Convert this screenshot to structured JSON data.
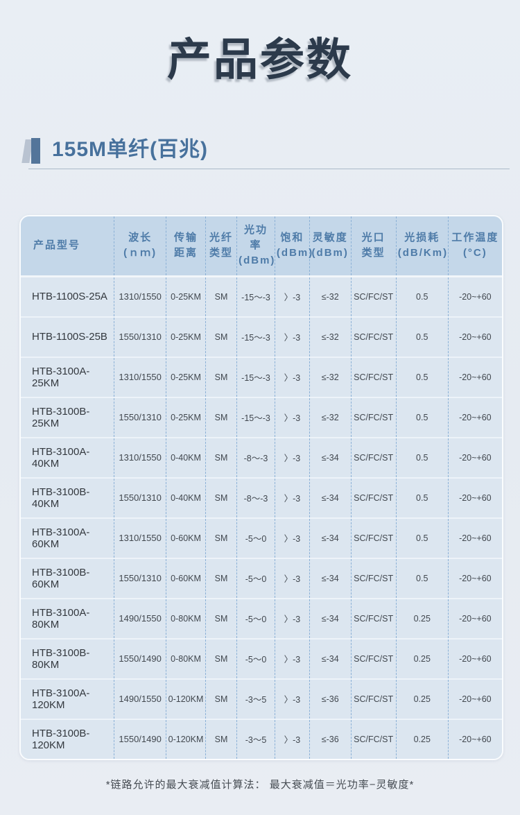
{
  "page": {
    "title": "产品参数",
    "section_title": "155M单纤(百兆)",
    "footnote": "*链路允许的最大衰减值计算法： 最大衰减值＝光功率−灵敏度*"
  },
  "table": {
    "headers": [
      {
        "line1": "产品型号",
        "line2": ""
      },
      {
        "line1": "波长",
        "line2": "(ｎｍ)"
      },
      {
        "line1": "传输",
        "line2": "距离"
      },
      {
        "line1": "光纤",
        "line2": "类型"
      },
      {
        "line1": "光功率",
        "line2": "(dBm)"
      },
      {
        "line1": "饱和",
        "line2": "(dBm)"
      },
      {
        "line1": "灵敏度",
        "line2": "(dBm)"
      },
      {
        "line1": "光口",
        "line2": "类型"
      },
      {
        "line1": "光损耗",
        "line2": "(dB/Km)"
      },
      {
        "line1": "工作温度",
        "line2": "(°C)"
      }
    ],
    "rows": [
      [
        "HTB-1100S-25A",
        "1310/1550",
        "0-25KM",
        "SM",
        "-15～-3",
        "〉-3",
        "≤-32",
        "SC/FC/ST",
        "0.5",
        "-20~+60"
      ],
      [
        "HTB-1100S-25B",
        "1550/1310",
        "0-25KM",
        "SM",
        "-15～-3",
        "〉-3",
        "≤-32",
        "SC/FC/ST",
        "0.5",
        "-20~+60"
      ],
      [
        "HTB-3100A-25KM",
        "1310/1550",
        "0-25KM",
        "SM",
        "-15～-3",
        "〉-3",
        "≤-32",
        "SC/FC/ST",
        "0.5",
        "-20~+60"
      ],
      [
        "HTB-3100B-25KM",
        "1550/1310",
        "0-25KM",
        "SM",
        "-15～-3",
        "〉-3",
        "≤-32",
        "SC/FC/ST",
        "0.5",
        "-20~+60"
      ],
      [
        "HTB-3100A-40KM",
        "1310/1550",
        "0-40KM",
        "SM",
        "-8～-3",
        "〉-3",
        "≤-34",
        "SC/FC/ST",
        "0.5",
        "-20~+60"
      ],
      [
        "HTB-3100B-40KM",
        "1550/1310",
        "0-40KM",
        "SM",
        "-8～-3",
        "〉-3",
        "≤-34",
        "SC/FC/ST",
        "0.5",
        "-20~+60"
      ],
      [
        "HTB-3100A-60KM",
        "1310/1550",
        "0-60KM",
        "SM",
        "-5～0",
        "〉-3",
        "≤-34",
        "SC/FC/ST",
        "0.5",
        "-20~+60"
      ],
      [
        "HTB-3100B-60KM",
        "1550/1310",
        "0-60KM",
        "SM",
        "-5～0",
        "〉-3",
        "≤-34",
        "SC/FC/ST",
        "0.5",
        "-20~+60"
      ],
      [
        "HTB-3100A-80KM",
        "1490/1550",
        "0-80KM",
        "SM",
        "-5～0",
        "〉-3",
        "≤-34",
        "SC/FC/ST",
        "0.25",
        "-20~+60"
      ],
      [
        "HTB-3100B-80KM",
        "1550/1490",
        "0-80KM",
        "SM",
        "-5～0",
        "〉-3",
        "≤-34",
        "SC/FC/ST",
        "0.25",
        "-20~+60"
      ],
      [
        "HTB-3100A-120KM",
        "1490/1550",
        "0-120KM",
        "SM",
        "-3～5",
        "〉-3",
        "≤-36",
        "SC/FC/ST",
        "0.25",
        "-20~+60"
      ],
      [
        "HTB-3100B-120KM",
        "1550/1490",
        "0-120KM",
        "SM",
        "-3～5",
        "〉-3",
        "≤-36",
        "SC/FC/ST",
        "0.25",
        "-20~+60"
      ]
    ],
    "col_widths_pct": [
      19.4,
      10.8,
      8.2,
      6.5,
      7.9,
      7.2,
      8.6,
      9.4,
      10.8,
      11.2
    ]
  },
  "colors": {
    "page_bg": "#e9edf3",
    "title_text": "#2c3a4b",
    "section_accent_dark": "#53759a",
    "section_accent_light": "#b9c3d1",
    "section_title_text": "#47719c",
    "table_header_bg": "#c4d7e9",
    "table_header_text": "#4e7ba8",
    "table_body_bg": "#dce6f0",
    "table_dashed_border": "#8ab0d6",
    "body_text": "#41474e"
  }
}
